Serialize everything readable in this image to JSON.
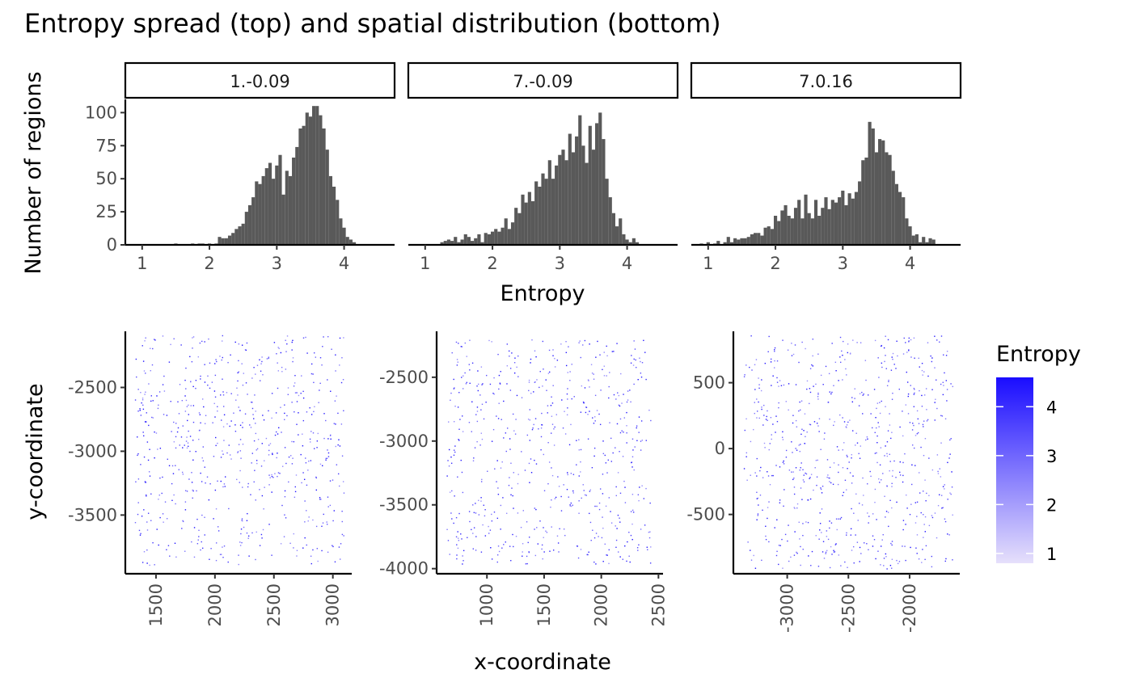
{
  "figure": {
    "title": "Entropy spread (top) and spatial distribution (bottom)"
  },
  "chart_data": [
    {
      "type": "bar",
      "subtype": "histogram",
      "facet_labels": [
        "1.-0.09",
        "7.-0.09",
        "7.0.16"
      ],
      "xlabel": "Entropy",
      "ylabel": "Number of regions",
      "bin_width": 0.05,
      "panels": [
        {
          "name": "1.-0.09",
          "xlim": [
            0.75,
            4.75
          ],
          "x_ticks": [
            1,
            2,
            3,
            4
          ],
          "ylim": [
            0,
            110
          ],
          "y_ticks": [
            0,
            25,
            50,
            75,
            100
          ],
          "bin_start": 1.475,
          "counts": [
            1,
            0,
            0,
            0,
            0,
            1,
            0,
            1,
            1,
            0,
            1,
            0,
            1,
            6,
            5,
            5,
            7,
            9,
            12,
            14,
            16,
            25,
            30,
            36,
            48,
            46,
            52,
            58,
            62,
            50,
            60,
            68,
            38,
            56,
            52,
            66,
            74,
            88,
            90,
            100,
            97,
            105,
            105,
            98,
            88,
            72,
            52,
            44,
            34,
            20,
            13,
            6,
            4,
            2
          ]
        },
        {
          "name": "7.-0.09",
          "xlim": [
            0.75,
            4.75
          ],
          "x_ticks": [
            1,
            2,
            3,
            4
          ],
          "ylim": [
            0,
            110
          ],
          "y_ticks": [
            0,
            25,
            50,
            75,
            100
          ],
          "bin_start": 1.225,
          "counts": [
            2,
            3,
            4,
            3,
            6,
            2,
            4,
            8,
            6,
            3,
            5,
            8,
            2,
            9,
            8,
            10,
            12,
            10,
            13,
            20,
            12,
            17,
            28,
            24,
            38,
            32,
            40,
            33,
            48,
            44,
            54,
            50,
            64,
            50,
            60,
            68,
            72,
            64,
            84,
            70,
            82,
            98,
            75,
            62,
            90,
            72,
            92,
            100,
            80,
            50,
            36,
            24,
            14,
            20,
            8,
            4,
            2,
            5,
            2
          ]
        },
        {
          "name": "7.0.16",
          "xlim": [
            0.75,
            4.75
          ],
          "x_ticks": [
            1,
            2,
            3,
            4
          ],
          "ylim": [
            0,
            110
          ],
          "y_ticks": [
            0,
            25,
            50,
            75,
            100
          ],
          "bin_start": 0.875,
          "counts": [
            1,
            0,
            2,
            0,
            1,
            3,
            0,
            2,
            6,
            2,
            5,
            4,
            5,
            5,
            6,
            8,
            9,
            9,
            7,
            13,
            14,
            12,
            22,
            18,
            26,
            30,
            22,
            20,
            28,
            34,
            20,
            38,
            24,
            20,
            34,
            22,
            28,
            36,
            27,
            34,
            32,
            36,
            41,
            30,
            39,
            35,
            40,
            48,
            64,
            66,
            93,
            88,
            70,
            80,
            79,
            70,
            68,
            56,
            46,
            40,
            36,
            20,
            14,
            7,
            8,
            2,
            6,
            2,
            5,
            4
          ]
        }
      ]
    },
    {
      "type": "scatter",
      "xlabel": "x-coordinate",
      "ylabel": "y-coordinate",
      "legend": {
        "title": "Entropy",
        "placement": "right",
        "range": [
          0.8,
          4.6
        ],
        "ticks": [
          1,
          2,
          3,
          4
        ],
        "low_color": "#e6e0fb",
        "high_color": "#1a0dff"
      },
      "panels": [
        {
          "name": "1.-0.09",
          "xlim": [
            1240,
            3160
          ],
          "ylim": [
            -3960,
            -2060
          ],
          "x_ticks": [
            1500,
            2000,
            2500,
            3000
          ],
          "y_ticks": [
            -3500,
            -3000,
            -2500
          ],
          "x_range": [
            1320,
            3090
          ],
          "y_range": [
            -3890,
            -2090
          ],
          "n_points": 650,
          "seed": 11
        },
        {
          "name": "7.-0.09",
          "xlim": [
            560,
            2540
          ],
          "ylim": [
            -4040,
            -2140
          ],
          "x_ticks": [
            1000,
            1500,
            2000,
            2500
          ],
          "y_ticks": [
            -4000,
            -3500,
            -3000,
            -2500
          ],
          "x_range": [
            640,
            2430
          ],
          "y_range": [
            -3960,
            -2190
          ],
          "n_points": 600,
          "seed": 23
        },
        {
          "name": "7.0.16",
          "xlim": [
            -3440,
            -1590
          ],
          "ylim": [
            -950,
            890
          ],
          "x_ticks": [
            -3000,
            -2500,
            -2000
          ],
          "y_ticks": [
            -500,
            0,
            500
          ],
          "x_range": [
            -3360,
            -1650
          ],
          "y_range": [
            -920,
            870
          ],
          "n_points": 700,
          "seed": 37
        }
      ]
    }
  ]
}
